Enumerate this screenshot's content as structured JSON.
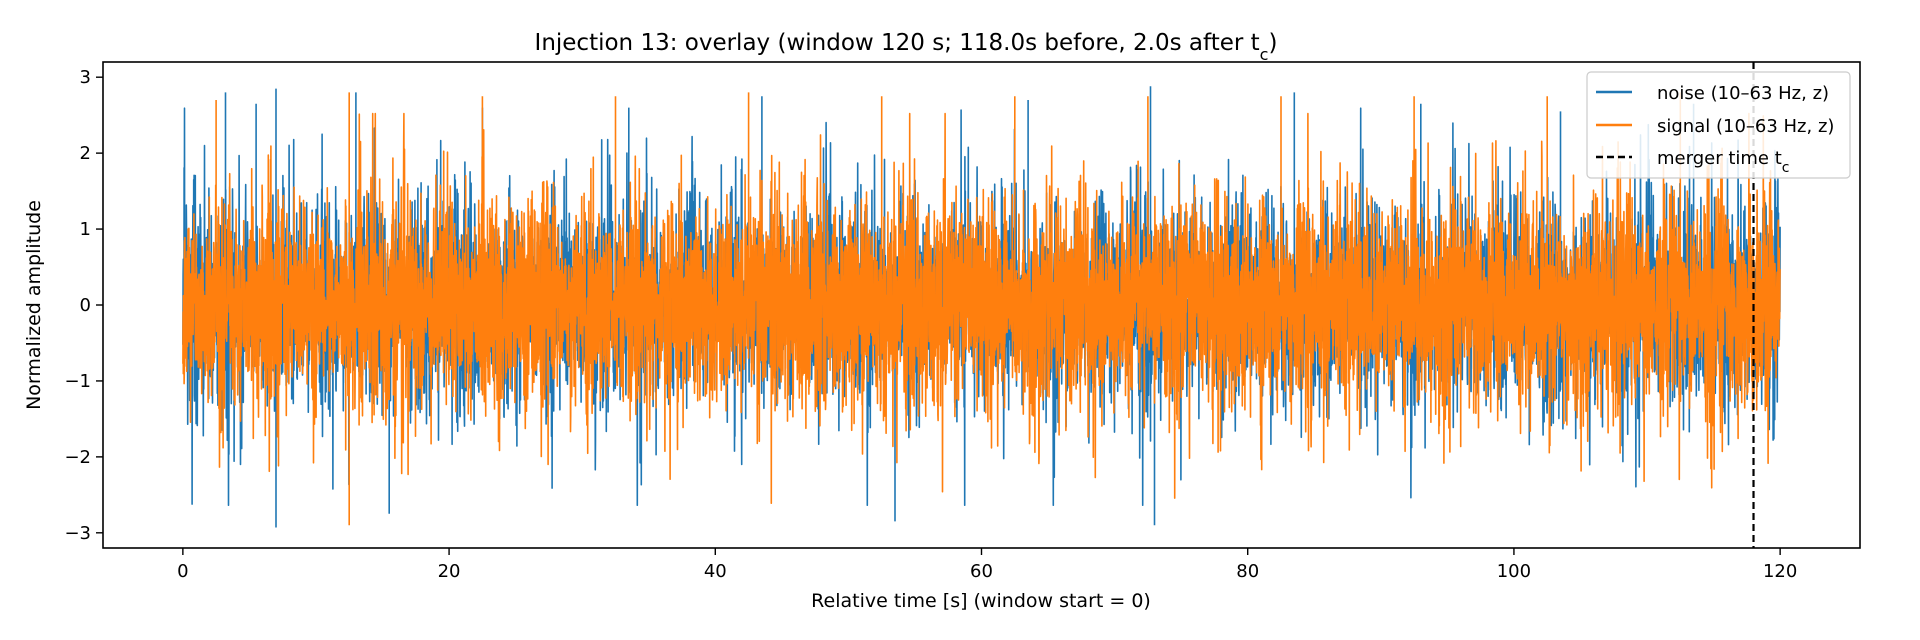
{
  "chart_data": {
    "type": "line",
    "title": "Injection 13: overlay (window 120 s; 118.0s before, 2.0s after t",
    "title_subscript": "c",
    "title_suffix": ")",
    "xlabel": "Relative time [s] (window start = 0)",
    "ylabel": "Normalized amplitude",
    "xlim": [
      -6,
      126
    ],
    "ylim": [
      -3.2,
      3.2
    ],
    "x_ticks": [
      0,
      20,
      40,
      60,
      80,
      100,
      120
    ],
    "x_tick_labels": [
      "0",
      "20",
      "40",
      "60",
      "80",
      "100",
      "120"
    ],
    "y_ticks": [
      -3,
      -2,
      -1,
      0,
      1,
      2,
      3
    ],
    "y_tick_labels": [
      "−3",
      "−2",
      "−1",
      "0",
      "1",
      "2",
      "3"
    ],
    "grid": false,
    "legend_placement": "top-right",
    "series": [
      {
        "name": "noise (10–63 Hz, z)",
        "color": "#1f77b4",
        "x_range": [
          0,
          120
        ],
        "amplitude_range": [
          -2.93,
          2.88
        ],
        "peaks": [
          {
            "x": 3.2,
            "y": 2.8
          },
          {
            "x": 5.5,
            "y": 2.65
          },
          {
            "x": 7.0,
            "y": 2.85
          },
          {
            "x": 7.0,
            "y": -2.93
          },
          {
            "x": 13.0,
            "y": 2.8
          },
          {
            "x": 15.5,
            "y": -2.75
          },
          {
            "x": 22.5,
            "y": 2.6
          },
          {
            "x": 33.5,
            "y": 2.6
          },
          {
            "x": 43.5,
            "y": 2.75
          },
          {
            "x": 53.5,
            "y": -2.85
          },
          {
            "x": 63.5,
            "y": 2.7
          },
          {
            "x": 72.7,
            "y": 2.88
          },
          {
            "x": 73.0,
            "y": -2.9
          },
          {
            "x": 83.5,
            "y": 2.8
          },
          {
            "x": 93.0,
            "y": 2.65
          },
          {
            "x": 103.5,
            "y": 2.55
          },
          {
            "x": 113.5,
            "y": 2.65
          }
        ]
      },
      {
        "name": "signal (10–63 Hz, z)",
        "color": "#ff7f0e",
        "x_range": [
          0,
          120
        ],
        "amplitude_range": [
          -2.9,
          2.8
        ],
        "peaks": [
          {
            "x": 2.5,
            "y": 2.7
          },
          {
            "x": 12.5,
            "y": 2.8
          },
          {
            "x": 12.5,
            "y": -2.9
          },
          {
            "x": 22.5,
            "y": 2.75
          },
          {
            "x": 32.5,
            "y": 2.75
          },
          {
            "x": 42.5,
            "y": 2.8
          },
          {
            "x": 52.5,
            "y": 2.75
          },
          {
            "x": 62.5,
            "y": 2.75
          },
          {
            "x": 72.5,
            "y": 2.75
          },
          {
            "x": 82.5,
            "y": 2.75
          },
          {
            "x": 92.5,
            "y": 2.75
          },
          {
            "x": 102.5,
            "y": 2.75
          },
          {
            "x": 112.5,
            "y": 2.8
          }
        ]
      }
    ],
    "vlines": [
      {
        "name": "merger time t",
        "name_subscript": "c",
        "x": 118.0,
        "color": "#000000",
        "style": "dashed"
      }
    ]
  }
}
